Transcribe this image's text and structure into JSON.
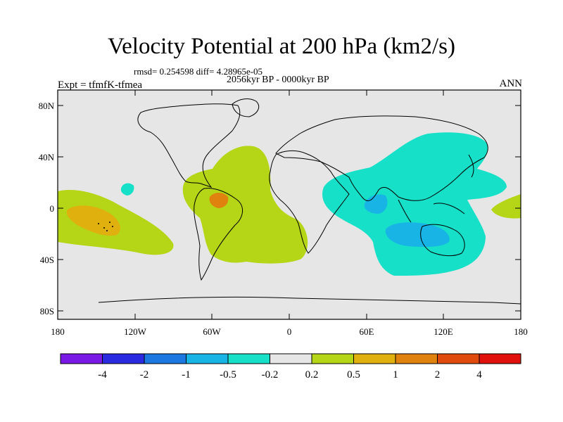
{
  "title": "Velocity Potential at 200 hPa (km2/s)",
  "stats_line": "rmsd= 0.254598 diff= 4.28965e-05",
  "period_line": "2056kyr BP - 0000kyr BP",
  "experiment": "Expt = tfmfK-tfmea",
  "season": "ANN",
  "map": {
    "background_color": "#e6e6e6",
    "lat_ticks": [
      "80N",
      "40N",
      "0",
      "40S",
      "80S"
    ],
    "lon_ticks": [
      "180",
      "120W",
      "60W",
      "0",
      "60E",
      "120E",
      "180"
    ]
  },
  "colorbar": {
    "colors": [
      "#7a18e6",
      "#2a2ae0",
      "#1a78e0",
      "#18b4e6",
      "#16e0c8",
      "#e6e6e6",
      "#b4d616",
      "#e0b00e",
      "#e0820e",
      "#e04a0c",
      "#e0100c"
    ],
    "labels": [
      "-4",
      "-2",
      "-1",
      "-0.5",
      "-0.2",
      "0.2",
      "0.5",
      "1",
      "2",
      "4"
    ]
  },
  "field_colors": {
    "pos_weak": "#b4d616",
    "pos_mid": "#e0b00e",
    "pos_strong": "#e0820e",
    "neg_weak": "#16e0c8",
    "neg_mid": "#18b4e6"
  }
}
